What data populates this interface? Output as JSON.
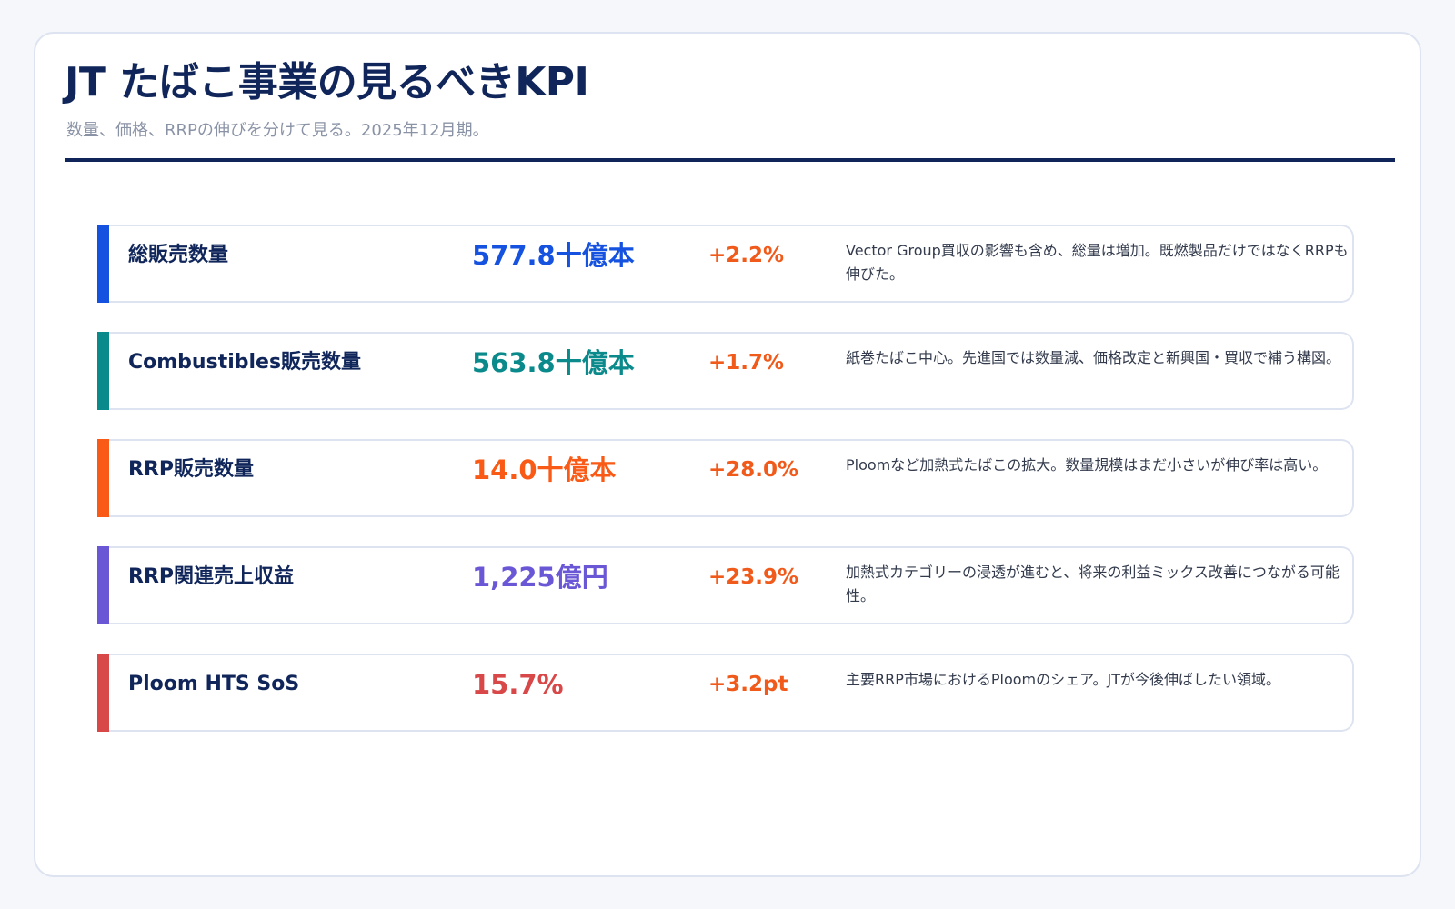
{
  "header": {
    "title": "JT たばこ事業の見るべきKPI",
    "subtitle": "数量、価格、RRPの伸びを分けて見る。2025年12月期。"
  },
  "colors": {
    "title": "#10265a",
    "change": "#f05a1a",
    "blue": "#1652e0",
    "teal": "#0b8a8c",
    "orange": "#f95a15",
    "purple": "#6a57d6",
    "red": "#d94848"
  },
  "kpis": [
    {
      "label": "総販売数量",
      "value": "577.8十億本",
      "change": "+2.2%",
      "note": "Vector Group買収の影響も含め、総量は増加。既燃製品だけではなくRRPも伸びた。",
      "accent": "#1652e0"
    },
    {
      "label": "Combustibles販売数量",
      "value": "563.8十億本",
      "change": "+1.7%",
      "note": "紙巻たばこ中心。先進国では数量減、価格改定と新興国・買収で補う構図。",
      "accent": "#0b8a8c"
    },
    {
      "label": "RRP販売数量",
      "value": "14.0十億本",
      "change": "+28.0%",
      "note": "Ploomなど加熱式たばこの拡大。数量規模はまだ小さいが伸び率は高い。",
      "accent": "#f95a15"
    },
    {
      "label": "RRP関連売上収益",
      "value": "1,225億円",
      "change": "+23.9%",
      "note": "加熱式カテゴリーの浸透が進むと、将来の利益ミックス改善につながる可能性。",
      "accent": "#6a57d6"
    },
    {
      "label": "Ploom HTS SoS",
      "value": "15.7%",
      "change": "+3.2pt",
      "note": "主要RRP市場におけるPloomのシェア。JTが今後伸ばしたい領域。",
      "accent": "#d94848"
    }
  ]
}
